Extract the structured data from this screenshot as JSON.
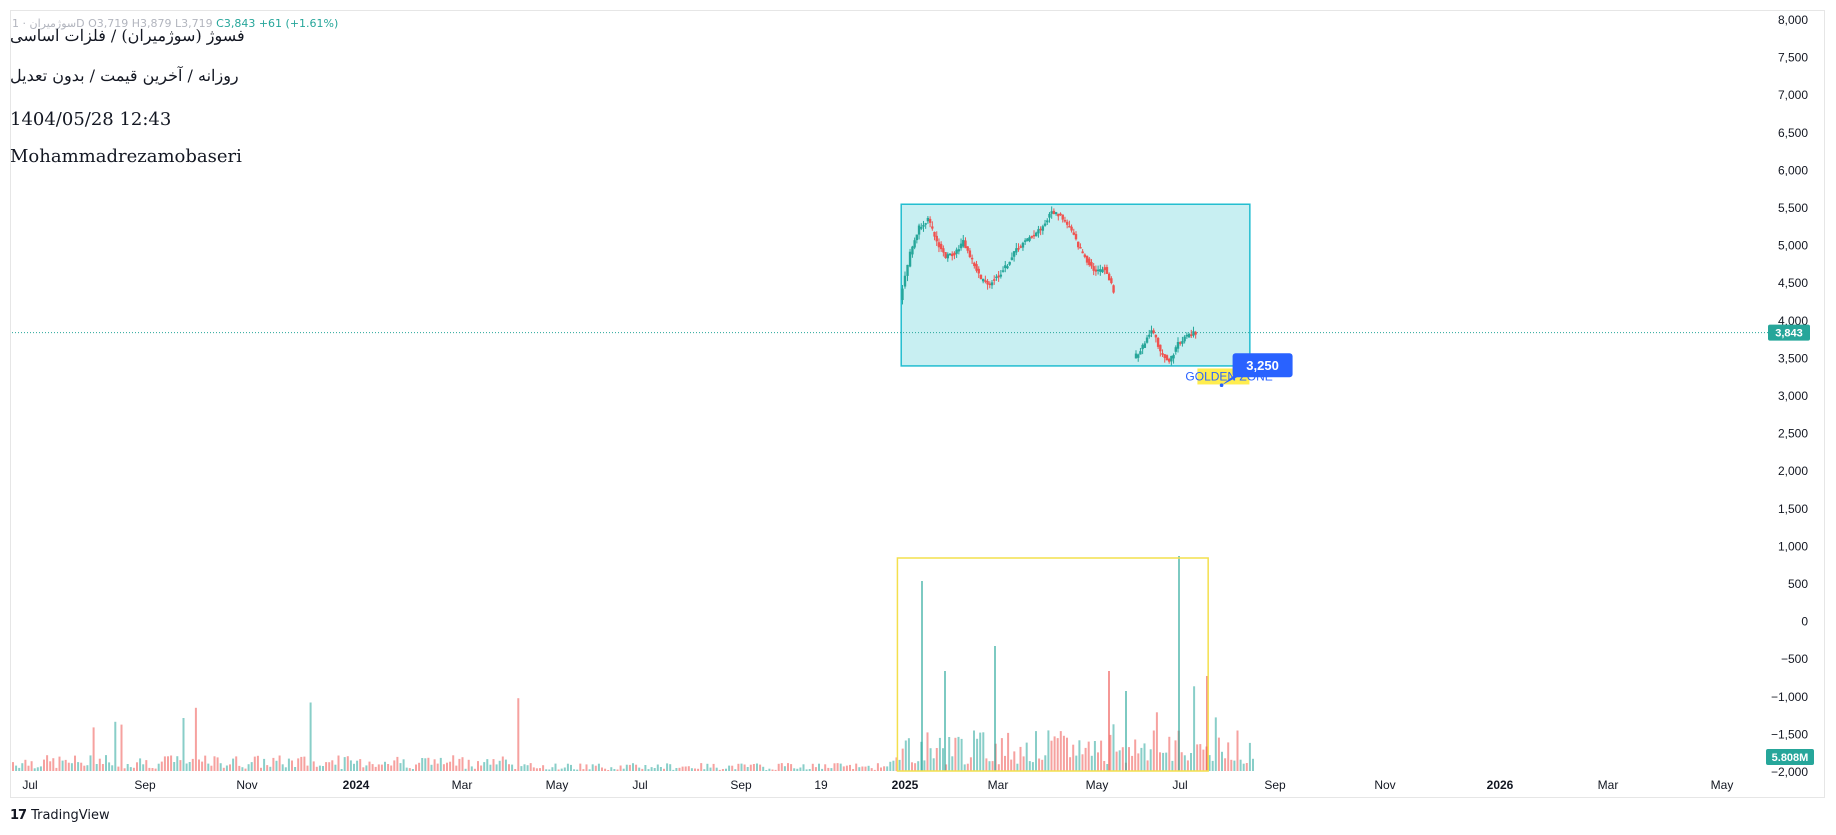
{
  "ohlc_header": {
    "symbol_faded": "سوژمیران · 1D",
    "open": "O3,719",
    "high": "H3,879",
    "low": "L3,719",
    "close": "C3,843",
    "change": "+61 (+1.61%)"
  },
  "legend": {
    "title": "فسوژ (سوژمیران) / فلزات اساسی",
    "subtitle": "روزانه / آخرین قیمت / بدون تعدیل",
    "datetime": "1404/05/28 12:43",
    "author": "Mohammadrezamobaseri"
  },
  "branding": {
    "name": "TradingView"
  },
  "colors": {
    "up": "#26a69a",
    "down": "#ef5350",
    "zone_fill": "#c8eff2",
    "zone_border": "#22bdd0",
    "volume_box": "#f4e04d",
    "callout": "#2962ff",
    "golden_label": "#2962ff",
    "golden_highlight": "#ffeb3b",
    "price_line": "#26a69a"
  },
  "chart_data": {
    "type": "candlestick",
    "y_axis": {
      "ticks": [
        "8,000",
        "7,500",
        "7,000",
        "6,500",
        "6,000",
        "5,500",
        "5,000",
        "4,500",
        "4,000",
        "3,500",
        "3,000",
        "2,500",
        "2,000",
        "1,500",
        "1,000",
        "500",
        "0",
        "−500",
        "−1,000",
        "−1,500",
        "−2,000"
      ],
      "range": [
        -2000,
        8000
      ]
    },
    "x_axis": {
      "ticks": [
        "Jul",
        "Sep",
        "Nov",
        "2024",
        "Mar",
        "May",
        "Jul",
        "Sep",
        "19",
        "2025",
        "Mar",
        "May",
        "Jul",
        "Sep",
        "Nov",
        "2026",
        "Mar",
        "May"
      ],
      "bold_ticks": [
        "2024",
        "2025",
        "2026"
      ]
    },
    "last_price": {
      "value": 3843,
      "label": "3,843"
    },
    "last_volume": {
      "label": "5.808M"
    },
    "price_series": [
      {
        "date": "2024-12-28",
        "price": 4300
      },
      {
        "date": "2025-01-05",
        "price": 4900
      },
      {
        "date": "2025-01-12",
        "price": 5250
      },
      {
        "date": "2025-01-19",
        "price": 5350
      },
      {
        "date": "2025-01-26",
        "price": 5050
      },
      {
        "date": "2025-02-02",
        "price": 4850
      },
      {
        "date": "2025-02-09",
        "price": 4900
      },
      {
        "date": "2025-02-16",
        "price": 5050
      },
      {
        "date": "2025-02-23",
        "price": 4800
      },
      {
        "date": "2025-03-02",
        "price": 4550
      },
      {
        "date": "2025-03-09",
        "price": 4500
      },
      {
        "date": "2025-03-16",
        "price": 4600
      },
      {
        "date": "2025-03-23",
        "price": 4750
      },
      {
        "date": "2025-03-30",
        "price": 4950
      },
      {
        "date": "2025-04-06",
        "price": 5050
      },
      {
        "date": "2025-04-13",
        "price": 5150
      },
      {
        "date": "2025-04-20",
        "price": 5250
      },
      {
        "date": "2025-04-27",
        "price": 5450
      },
      {
        "date": "2025-05-04",
        "price": 5400
      },
      {
        "date": "2025-05-11",
        "price": 5250
      },
      {
        "date": "2025-05-18",
        "price": 5000
      },
      {
        "date": "2025-05-25",
        "price": 4800
      },
      {
        "date": "2025-06-01",
        "price": 4650
      },
      {
        "date": "2025-06-08",
        "price": 4700
      },
      {
        "date": "2025-06-15",
        "price": 4400
      },
      {
        "date": "2025-07-01",
        "price": 3500
      },
      {
        "date": "2025-07-08",
        "price": 3650
      },
      {
        "date": "2025-07-15",
        "price": 3900
      },
      {
        "date": "2025-07-22",
        "price": 3600
      },
      {
        "date": "2025-07-29",
        "price": 3450
      },
      {
        "date": "2025-08-05",
        "price": 3700
      },
      {
        "date": "2025-08-12",
        "price": 3800
      },
      {
        "date": "2025-08-19",
        "price": 3843
      }
    ],
    "drawings": {
      "price_zone": {
        "from": "2024-12-28",
        "to": "2025-09-30",
        "top": 5550,
        "bottom": 3400
      },
      "volume_highlight": {
        "from": "2024-12-25",
        "to": "2025-08-28"
      },
      "callout": {
        "label": "3,250",
        "date": "2025-09-10",
        "price": 3250
      },
      "text_label": {
        "text": "GOLDEN ZONE",
        "date": "2025-08-10",
        "price": 3220
      }
    }
  }
}
